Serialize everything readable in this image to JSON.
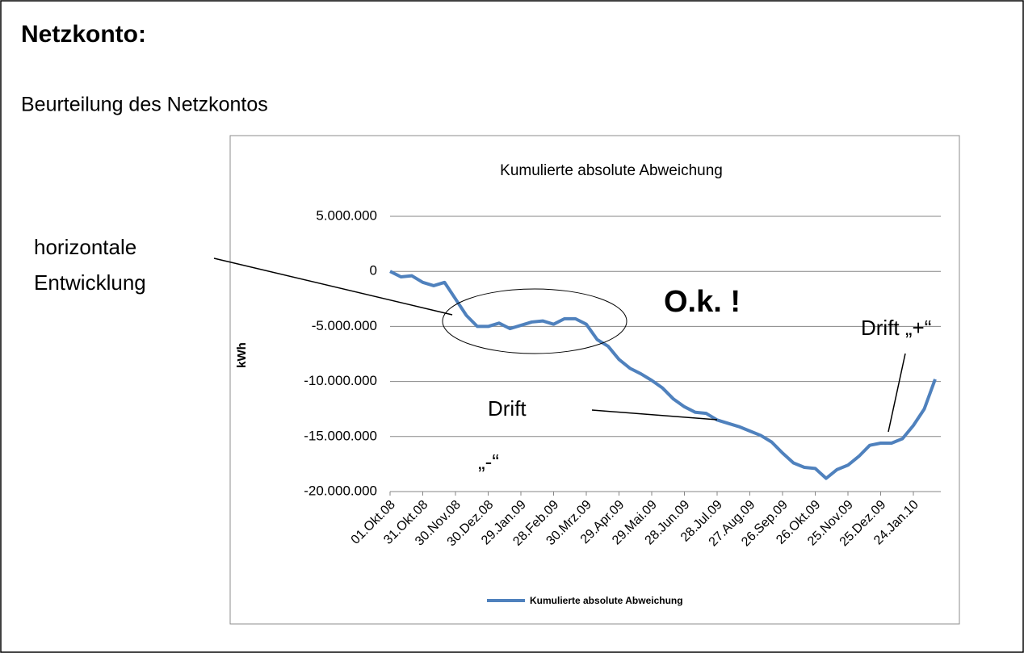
{
  "header": {
    "title": "Netzkonto:",
    "subtitle": "Beurteilung des Netzkontos"
  },
  "chart_data": {
    "type": "line",
    "title": "Kumulierte absolute Abweichung",
    "ylabel": "kWh",
    "categories": [
      "01.Okt.08",
      null,
      null,
      "31.Okt.08",
      null,
      null,
      "30.Nov.08",
      null,
      null,
      "30.Dez.08",
      null,
      null,
      "29.Jan.09",
      null,
      null,
      "28.Feb.09",
      null,
      null,
      "30.Mrz.09",
      null,
      null,
      "29.Apr.09",
      null,
      null,
      "29.Mai.09",
      null,
      null,
      "28.Jun.09",
      null,
      null,
      "28.Jul.09",
      null,
      null,
      "27.Aug.09",
      null,
      null,
      "26.Sep.09",
      null,
      null,
      "26.Okt.09",
      null,
      null,
      "25.Nov.09",
      null,
      null,
      "25.Dez.09",
      null,
      null,
      "24.Jan.10",
      null,
      null
    ],
    "series": [
      {
        "name": "Kumulierte absolute Abweichung",
        "color": "#4f81bd",
        "values": [
          0,
          -500000,
          -400000,
          -1000000,
          -1300000,
          -1000000,
          -2500000,
          -4000000,
          -5000000,
          -5000000,
          -4700000,
          -5200000,
          -4900000,
          -4600000,
          -4500000,
          -4800000,
          -4300000,
          -4300000,
          -4800000,
          -6200000,
          -6800000,
          -8000000,
          -8800000,
          -9300000,
          -9900000,
          -10600000,
          -11600000,
          -12300000,
          -12800000,
          -12900000,
          -13500000,
          -13800000,
          -14100000,
          -14500000,
          -14900000,
          -15500000,
          -16500000,
          -17400000,
          -17800000,
          -17900000,
          -18800000,
          -18000000,
          -17600000,
          -16800000,
          -15800000,
          -15600000,
          -15600000,
          -15200000,
          -14000000,
          -12500000,
          -9800000
        ]
      }
    ],
    "ylim": [
      -20000000,
      5000000
    ],
    "yticks": [
      {
        "value": -20000000,
        "label": "-20.000.000"
      },
      {
        "value": -15000000,
        "label": "-15.000.000"
      },
      {
        "value": -10000000,
        "label": "-10.000.000"
      },
      {
        "value": -5000000,
        "label": "-5.000.000"
      },
      0,
      {
        "value": 5000000,
        "label": "5.000.000"
      }
    ],
    "grid": true,
    "legend": "bottom",
    "annotations": [
      "horizontale",
      "Entwicklung",
      "O.k. !",
      "Drift „+“",
      "Drift",
      "„-“"
    ]
  }
}
